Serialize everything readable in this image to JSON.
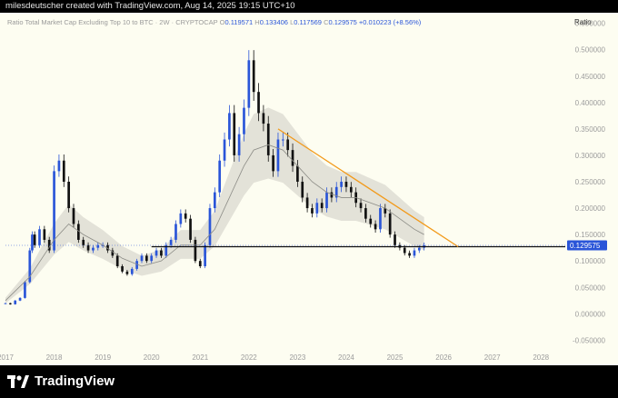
{
  "header": {
    "credit": "milesdeutscher created with TradingView.com, Aug 14, 2025 19:15 UTC+10"
  },
  "legend": {
    "title": "Ratio Total Market Cap Excluding Top 10 to BTC · 2W · CRYPTOCAP",
    "open_label": "O",
    "open": "0.119571",
    "high_label": "H",
    "high": "0.133406",
    "low_label": "L",
    "low": "0.117569",
    "close_label": "C",
    "close": "0.129575",
    "change": "+0.010223 (+8.56%)"
  },
  "scale_button": "Ratio",
  "price_tag": "0.129575",
  "footer": {
    "brand": "TradingView"
  },
  "colors": {
    "up": "#2a55d8",
    "down": "#111111",
    "trendline": "#f29a1a",
    "support": "#111111",
    "band": "#d8d8d0",
    "background": "#fdfdf1"
  },
  "chart_data": {
    "type": "line",
    "symbol": "Ratio Total Market Cap Excluding Top 10 to BTC",
    "interval": "2W",
    "yticks": [
      "0.550000",
      "0.500000",
      "0.450000",
      "0.400000",
      "0.350000",
      "0.300000",
      "0.250000",
      "0.200000",
      "0.150000",
      "0.100000",
      "0.050000",
      "0.000000",
      "-0.050000"
    ],
    "ytick_values": [
      0.55,
      0.5,
      0.45,
      0.4,
      0.35,
      0.3,
      0.25,
      0.2,
      0.15,
      0.1,
      0.05,
      0.0,
      -0.05
    ],
    "xticks": [
      "2017",
      "2018",
      "2019",
      "2020",
      "2021",
      "2022",
      "2023",
      "2024",
      "2025",
      "2026",
      "2027",
      "2028"
    ],
    "xtick_values": [
      2017,
      2018,
      2019,
      2020,
      2021,
      2022,
      2023,
      2024,
      2025,
      2026,
      2027,
      2028
    ],
    "xlim": [
      2017.0,
      2028.5
    ],
    "ylim": [
      -0.07,
      0.57
    ],
    "series": [
      {
        "role": "price",
        "x": [
          2017.0,
          2017.1,
          2017.2,
          2017.3,
          2017.4,
          2017.5,
          2017.55,
          2017.6,
          2017.7,
          2017.8,
          2017.9,
          2018.0,
          2018.1,
          2018.2,
          2018.3,
          2018.4,
          2018.5,
          2018.6,
          2018.7,
          2018.8,
          2018.9,
          2019.0,
          2019.1,
          2019.2,
          2019.3,
          2019.4,
          2019.5,
          2019.6,
          2019.7,
          2019.8,
          2019.9,
          2020.0,
          2020.1,
          2020.2,
          2020.3,
          2020.4,
          2020.5,
          2020.6,
          2020.7,
          2020.8,
          2020.9,
          2021.0,
          2021.1,
          2021.2,
          2021.3,
          2021.4,
          2021.5,
          2021.6,
          2021.7,
          2021.8,
          2021.9,
          2022.0,
          2022.1,
          2022.2,
          2022.3,
          2022.4,
          2022.5,
          2022.6,
          2022.7,
          2022.8,
          2022.9,
          2023.0,
          2023.1,
          2023.2,
          2023.3,
          2023.4,
          2023.5,
          2023.6,
          2023.7,
          2023.8,
          2023.9,
          2024.0,
          2024.1,
          2024.2,
          2024.3,
          2024.4,
          2024.5,
          2024.6,
          2024.7,
          2024.8,
          2024.9,
          2025.0,
          2025.1,
          2025.2,
          2025.3,
          2025.4,
          2025.5,
          2025.6
        ],
        "y": [
          0.02,
          0.018,
          0.025,
          0.03,
          0.06,
          0.12,
          0.15,
          0.13,
          0.16,
          0.14,
          0.12,
          0.27,
          0.29,
          0.25,
          0.2,
          0.17,
          0.14,
          0.13,
          0.12,
          0.125,
          0.13,
          0.13,
          0.12,
          0.11,
          0.09,
          0.08,
          0.075,
          0.085,
          0.1,
          0.11,
          0.1,
          0.11,
          0.12,
          0.11,
          0.13,
          0.14,
          0.17,
          0.19,
          0.18,
          0.14,
          0.1,
          0.09,
          0.13,
          0.2,
          0.23,
          0.29,
          0.33,
          0.38,
          0.3,
          0.34,
          0.39,
          0.48,
          0.42,
          0.38,
          0.36,
          0.3,
          0.27,
          0.33,
          0.33,
          0.31,
          0.28,
          0.25,
          0.22,
          0.2,
          0.19,
          0.21,
          0.2,
          0.23,
          0.22,
          0.24,
          0.25,
          0.24,
          0.23,
          0.21,
          0.2,
          0.18,
          0.17,
          0.16,
          0.2,
          0.19,
          0.15,
          0.13,
          0.125,
          0.115,
          0.11,
          0.12,
          0.125,
          0.129575
        ]
      },
      {
        "role": "moving-average",
        "x": [
          2017.0,
          2017.5,
          2018.0,
          2018.3,
          2018.6,
          2019.0,
          2019.4,
          2019.8,
          2020.2,
          2020.6,
          2021.0,
          2021.3,
          2021.6,
          2021.9,
          2022.1,
          2022.4,
          2022.7,
          2023.0,
          2023.3,
          2023.6,
          2023.9,
          2024.2,
          2024.5,
          2024.8,
          2025.1,
          2025.4,
          2025.6
        ],
        "y": [
          0.025,
          0.07,
          0.14,
          0.17,
          0.15,
          0.13,
          0.105,
          0.09,
          0.1,
          0.13,
          0.13,
          0.16,
          0.22,
          0.28,
          0.31,
          0.32,
          0.31,
          0.28,
          0.25,
          0.23,
          0.22,
          0.22,
          0.21,
          0.2,
          0.18,
          0.16,
          0.15
        ]
      },
      {
        "role": "trendline",
        "x": [
          2022.6,
          2026.3
        ],
        "y": [
          0.35,
          0.127
        ]
      },
      {
        "role": "support",
        "x": [
          2020.0,
          2028.5
        ],
        "y": [
          0.127,
          0.127
        ]
      }
    ],
    "last_price": 0.129575
  }
}
